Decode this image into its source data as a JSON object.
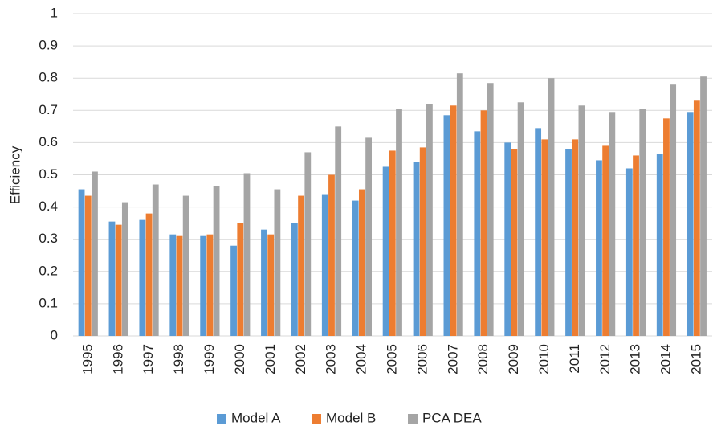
{
  "chart_data": {
    "type": "bar",
    "y_label": "Efficiency",
    "categories": [
      "1995",
      "1996",
      "1997",
      "1998",
      "1999",
      "2000",
      "2001",
      "2002",
      "2003",
      "2004",
      "2005",
      "2006",
      "2007",
      "2008",
      "2009",
      "2010",
      "2011",
      "2012",
      "2013",
      "2014",
      "2015"
    ],
    "series": [
      {
        "name": "Model A",
        "color": "#5b9bd5",
        "values": [
          0.455,
          0.355,
          0.36,
          0.315,
          0.31,
          0.28,
          0.33,
          0.35,
          0.44,
          0.42,
          0.525,
          0.54,
          0.685,
          0.635,
          0.6,
          0.645,
          0.58,
          0.545,
          0.52,
          0.565,
          0.695
        ]
      },
      {
        "name": "Model B",
        "color": "#ed7d31",
        "values": [
          0.435,
          0.345,
          0.38,
          0.31,
          0.315,
          0.35,
          0.315,
          0.435,
          0.5,
          0.455,
          0.575,
          0.585,
          0.715,
          0.7,
          0.58,
          0.61,
          0.61,
          0.59,
          0.56,
          0.675,
          0.73
        ]
      },
      {
        "name": "PCA DEA",
        "color": "#a5a5a5",
        "values": [
          0.51,
          0.415,
          0.47,
          0.435,
          0.465,
          0.505,
          0.455,
          0.57,
          0.65,
          0.615,
          0.705,
          0.72,
          0.815,
          0.785,
          0.725,
          0.8,
          0.715,
          0.695,
          0.705,
          0.78,
          0.805
        ]
      }
    ],
    "ylim": [
      0,
      1
    ],
    "yticks": [
      0,
      0.1,
      0.2,
      0.3,
      0.4,
      0.5,
      0.6,
      0.7,
      0.8,
      0.9,
      1
    ],
    "grid": true,
    "legend": "bottom"
  }
}
